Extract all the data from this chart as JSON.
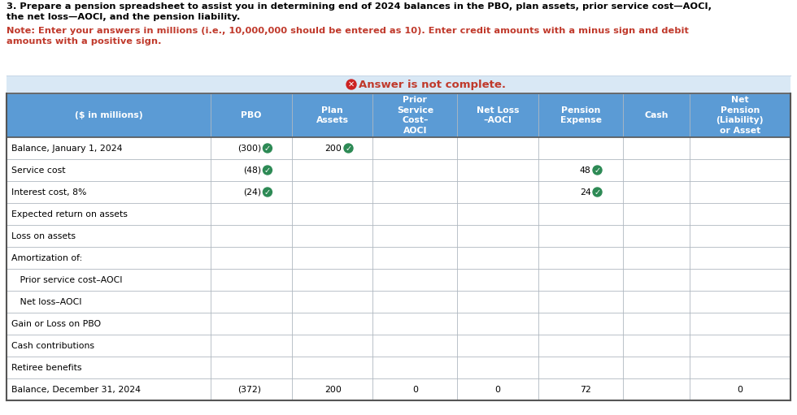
{
  "title_line1": "3. Prepare a pension spreadsheet to assist you in determining end of 2024 balances in the PBO, plan assets, prior service cost—AOCI,",
  "title_line2": "the net loss—AOCI, and the pension liability.",
  "note_line1": "Note: Enter your answers in millions (i.e., 10,000,000 should be entered as 10). Enter credit amounts with a minus sign and debit",
  "note_line2": "amounts with a positive sign.",
  "banner_text": " Answer is not complete.",
  "col_headers": [
    "($ in millions)",
    "PBO",
    "Plan\nAssets",
    "Prior\nService\nCost–\nAOCI",
    "Net Loss\n–AOCI",
    "Pension\nExpense",
    "Cash",
    "Net\nPension\n(Liability)\nor Asset"
  ],
  "rows": [
    {
      "label": "Balance, January 1, 2024",
      "pbo": "(300)",
      "pbo_check": true,
      "assets": "200",
      "assets_check": true,
      "psc": "",
      "netloss": "",
      "pension": "",
      "pension_check": false,
      "cash": "",
      "net": ""
    },
    {
      "label": "Service cost",
      "pbo": "(48)",
      "pbo_check": true,
      "assets": "",
      "assets_check": false,
      "psc": "",
      "netloss": "",
      "pension": "48",
      "pension_check": true,
      "cash": "",
      "net": ""
    },
    {
      "label": "Interest cost, 8%",
      "pbo": "(24)",
      "pbo_check": true,
      "assets": "",
      "assets_check": false,
      "psc": "",
      "netloss": "",
      "pension": "24",
      "pension_check": true,
      "cash": "",
      "net": ""
    },
    {
      "label": "Expected return on assets",
      "pbo": "",
      "pbo_check": false,
      "assets": "",
      "assets_check": false,
      "psc": "",
      "netloss": "",
      "pension": "",
      "pension_check": false,
      "cash": "",
      "net": ""
    },
    {
      "label": "Loss on assets",
      "pbo": "",
      "pbo_check": false,
      "assets": "",
      "assets_check": false,
      "psc": "",
      "netloss": "",
      "pension": "",
      "pension_check": false,
      "cash": "",
      "net": ""
    },
    {
      "label": "Amortization of:",
      "pbo": "",
      "pbo_check": false,
      "assets": "",
      "assets_check": false,
      "psc": "",
      "netloss": "",
      "pension": "",
      "pension_check": false,
      "cash": "",
      "net": ""
    },
    {
      "label": "   Prior service cost–AOCI",
      "pbo": "",
      "pbo_check": false,
      "assets": "",
      "assets_check": false,
      "psc": "",
      "netloss": "",
      "pension": "",
      "pension_check": false,
      "cash": "",
      "net": ""
    },
    {
      "label": "   Net loss–AOCI",
      "pbo": "",
      "pbo_check": false,
      "assets": "",
      "assets_check": false,
      "psc": "",
      "netloss": "",
      "pension": "",
      "pension_check": false,
      "cash": "",
      "net": ""
    },
    {
      "label": "Gain or Loss on PBO",
      "pbo": "",
      "pbo_check": false,
      "assets": "",
      "assets_check": false,
      "psc": "",
      "netloss": "",
      "pension": "",
      "pension_check": false,
      "cash": "",
      "net": ""
    },
    {
      "label": "Cash contributions",
      "pbo": "",
      "pbo_check": false,
      "assets": "",
      "assets_check": false,
      "psc": "",
      "netloss": "",
      "pension": "",
      "pension_check": false,
      "cash": "",
      "net": ""
    },
    {
      "label": "Retiree benefits",
      "pbo": "",
      "pbo_check": false,
      "assets": "",
      "assets_check": false,
      "psc": "",
      "netloss": "",
      "pension": "",
      "pension_check": false,
      "cash": "",
      "net": ""
    },
    {
      "label": "Balance, December 31, 2024",
      "pbo": "(372)",
      "pbo_check": false,
      "assets": "200",
      "assets_check": false,
      "psc": "0",
      "netloss": "0",
      "pension": "72",
      "pension_check": false,
      "cash": "",
      "net": "0"
    }
  ],
  "header_bg": "#5b9bd5",
  "header_text_color": "#ffffff",
  "banner_bg": "#d9e8f5",
  "banner_text_color": "#c0392b",
  "row_even_bg": "#ffffff",
  "row_odd_bg": "#ffffff",
  "row_line_color": "#b0b8c0",
  "border_color": "#555555",
  "title_color": "#000000",
  "note_color": "#c0392b",
  "check_color": "#2d8a55",
  "check_border": "#206040",
  "banner_x_color": "#cc2222"
}
